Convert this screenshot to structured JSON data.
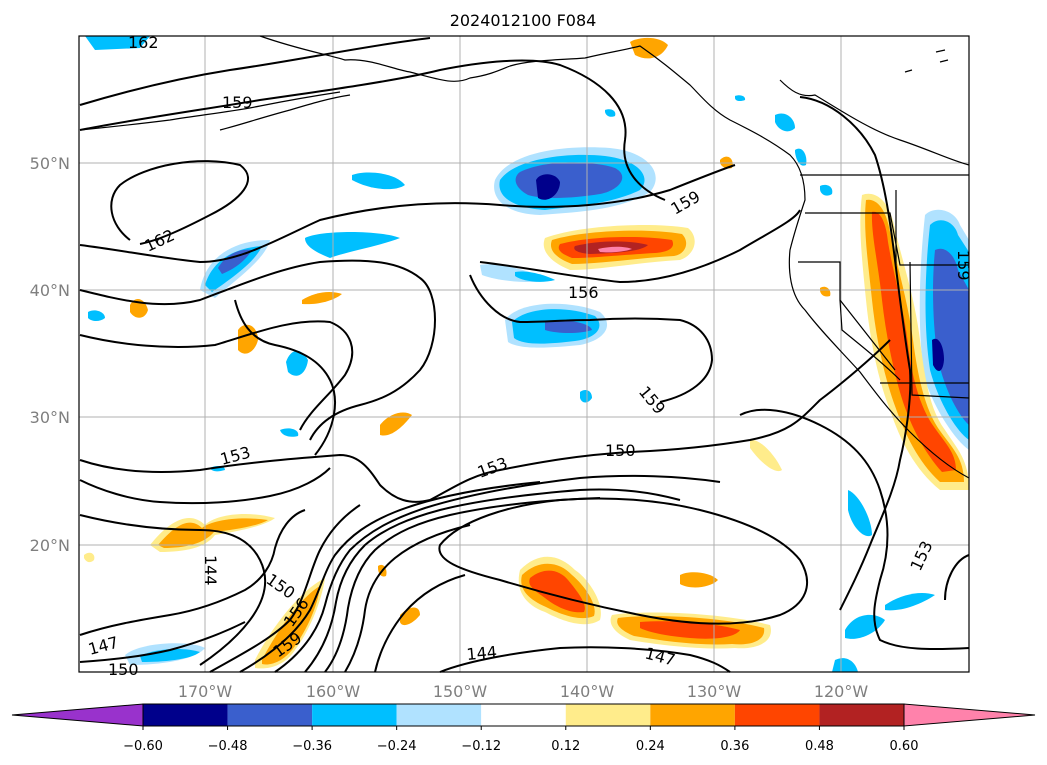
{
  "title": "2024012100 F084",
  "axes": {
    "lon_labels": [
      "170°W",
      "160°W",
      "150°W",
      "140°W",
      "130°W",
      "120°W"
    ],
    "lat_labels": [
      "50°N",
      "40°N",
      "30°N",
      "20°N"
    ]
  },
  "colorbar": {
    "ticks": [
      "−0.60",
      "−0.48",
      "−0.36",
      "−0.24",
      "−0.12",
      "0.12",
      "0.24",
      "0.36",
      "0.48",
      "0.60"
    ],
    "colors": [
      "#9932cc",
      "#00008b",
      "#3a5fcd",
      "#00bfff",
      "#b0e2ff",
      "#ffffff",
      "#ffec8b",
      "#ffa500",
      "#ff4500",
      "#b22222",
      "#ff82ab"
    ]
  },
  "contour_labels": [
    "162",
    "159",
    "162",
    "159",
    "156",
    "159",
    "153",
    "150",
    "153",
    "144",
    "150",
    "156",
    "159",
    "147",
    "150",
    "144",
    "147",
    "153",
    "159"
  ]
}
